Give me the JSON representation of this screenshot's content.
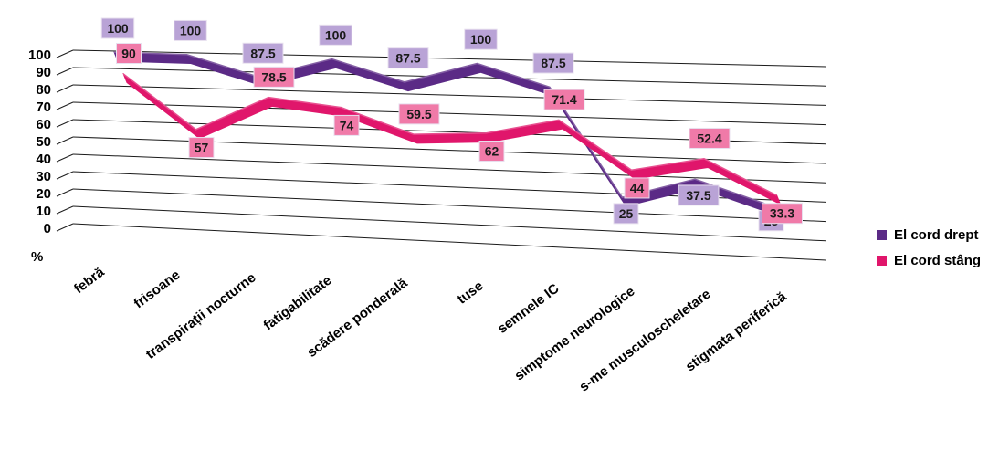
{
  "chart_data": {
    "type": "line",
    "style": "3d-ribbon",
    "categories": [
      "febră",
      "frisoane",
      "transpirații nocturne",
      "fatigabilitate",
      "scădere ponderală",
      "tuse",
      "semnele IC",
      "simptome neurologice",
      "s-me musculoscheletare",
      "stigmata periferică"
    ],
    "series": [
      {
        "name": "El cord drept",
        "color": "#5b2a86",
        "label_bg": "#b9a3d6",
        "values": [
          100,
          100,
          87.5,
          100,
          87.5,
          100,
          87.5,
          25,
          37.5,
          25
        ]
      },
      {
        "name": "El cord stâng",
        "color": "#e0166b",
        "label_bg": "#f07aa8",
        "values": [
          90,
          57,
          78.5,
          74,
          59.5,
          62,
          71.4,
          44,
          52.4,
          33.3
        ]
      }
    ],
    "ylabel": "%",
    "yticks": [
      "0",
      "10",
      "20",
      "30",
      "40",
      "50",
      "60",
      "70",
      "80",
      "90",
      "100"
    ],
    "ylim": [
      0,
      100
    ],
    "grid": true,
    "legend": "right"
  }
}
